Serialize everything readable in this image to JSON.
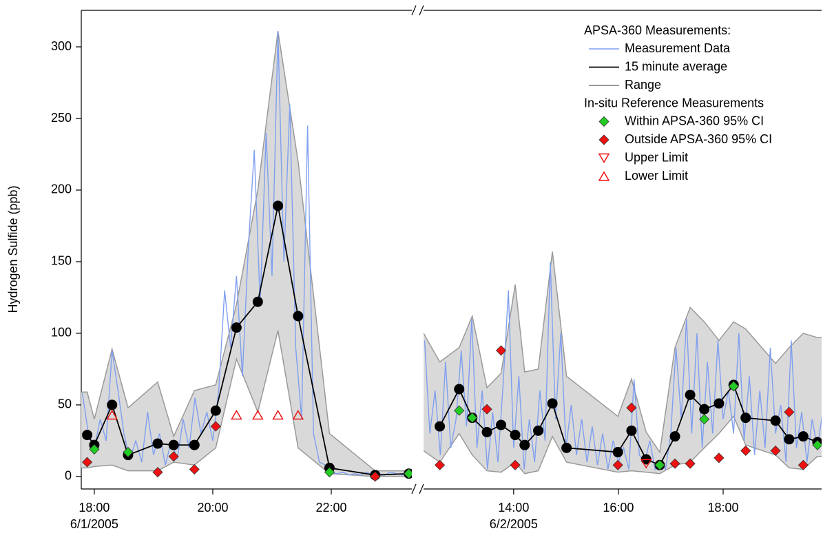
{
  "chart_data": {
    "type": "line",
    "ylabel": "Hydrogen Sulfide (ppb)",
    "ylim": [
      -8.7,
      325.5
    ],
    "yticks": [
      0,
      50,
      100,
      150,
      200,
      250,
      300
    ],
    "legend_titles": [
      "APSA-360 Measurements:",
      "In-situ Reference Measurements"
    ],
    "panels": [
      {
        "xlim": [
          17.78,
          23.36
        ],
        "xticks": [
          {
            "value": 18,
            "label": "18:00"
          },
          {
            "value": 20,
            "label": "20:00"
          },
          {
            "value": 22,
            "label": "22:00"
          }
        ],
        "date_label": "6/1/2005"
      },
      {
        "xlim": [
          12.28,
          19.88
        ],
        "xticks": [
          {
            "value": 14,
            "label": "14:00"
          },
          {
            "value": 16,
            "label": "16:00"
          },
          {
            "value": 18,
            "label": "18:00"
          }
        ],
        "date_label": "6/2/2005"
      }
    ],
    "series": [
      {
        "name": "Measurement Data",
        "kind": "line",
        "color": "#7f9ff0",
        "panels": [
          {
            "x": [
              17.8,
              17.9,
              18.0,
              18.1,
              18.2,
              18.3,
              18.4,
              18.5,
              18.6,
              18.7,
              18.8,
              18.9,
              19.0,
              19.1,
              19.2,
              19.3,
              19.4,
              19.5,
              19.6,
              19.7,
              19.8,
              19.9,
              20.0,
              20.1,
              20.2,
              20.3,
              20.4,
              20.5,
              20.6,
              20.7,
              20.8,
              20.9,
              21.0,
              21.1,
              21.2,
              21.3,
              21.4,
              21.5,
              21.6,
              21.7,
              21.8,
              21.9,
              22.0,
              22.1,
              22.2,
              22.3,
              22.4,
              22.5,
              22.6,
              22.7,
              22.8,
              22.9,
              23.0,
              23.1,
              23.2,
              23.3
            ],
            "values": [
              58,
              30,
              20,
              40,
              25,
              88,
              60,
              30,
              12,
              25,
              10,
              45,
              15,
              30,
              8,
              25,
              12,
              40,
              20,
              55,
              30,
              45,
              25,
              60,
              130,
              90,
              140,
              70,
              160,
              228,
              120,
              240,
              140,
              311,
              150,
              260,
              90,
              40,
              245,
              30,
              10,
              8,
              3,
              2,
              3,
              1,
              2,
              1,
              3,
              1,
              2,
              1,
              3,
              2,
              1,
              2
            ]
          },
          {
            "x": [
              12.3,
              12.4,
              12.5,
              12.6,
              12.7,
              12.8,
              12.9,
              13.0,
              13.1,
              13.2,
              13.3,
              13.4,
              13.5,
              13.6,
              13.7,
              13.8,
              13.9,
              14.0,
              14.1,
              14.2,
              14.3,
              14.4,
              14.5,
              14.6,
              14.7,
              14.8,
              14.9,
              15.0,
              15.1,
              15.2,
              15.3,
              15.4,
              15.5,
              15.6,
              15.7,
              15.8,
              15.9,
              16.0,
              16.1,
              16.2,
              16.3,
              16.4,
              16.5,
              16.6,
              16.7,
              16.8,
              16.9,
              17.0,
              17.1,
              17.2,
              17.3,
              17.4,
              17.5,
              17.6,
              17.7,
              17.8,
              17.9,
              18.0,
              18.1,
              18.2,
              18.3,
              18.4,
              18.5,
              18.6,
              18.7,
              18.8,
              18.9,
              19.0,
              19.1,
              19.2,
              19.3,
              19.4,
              19.5,
              19.6,
              19.7,
              19.8,
              19.9
            ],
            "values": [
              95,
              30,
              60,
              15,
              80,
              20,
              40,
              88,
              35,
              110,
              20,
              60,
              5,
              45,
              10,
              65,
              130,
              20,
              70,
              5,
              40,
              10,
              60,
              25,
              150,
              40,
              100,
              20,
              50,
              15,
              40,
              10,
              35,
              8,
              30,
              5,
              25,
              10,
              20,
              5,
              68,
              15,
              10,
              25,
              5,
              10,
              5,
              30,
              90,
              40,
              110,
              30,
              100,
              20,
              80,
              30,
              95,
              40,
              60,
              30,
              100,
              25,
              70,
              15,
              60,
              20,
              90,
              30,
              50,
              10,
              95,
              20,
              45,
              10,
              40,
              20,
              45
            ]
          }
        ]
      },
      {
        "name": "15 minute average",
        "kind": "line",
        "marker": "circle",
        "color": "#000000",
        "panels": [
          {
            "x": [
              17.88,
              18.0,
              18.3,
              18.57,
              19.07,
              19.34,
              19.69,
              20.05,
              20.4,
              20.76,
              21.1,
              21.44,
              21.97,
              22.74,
              23.31
            ],
            "values": [
              29,
              22,
              50,
              15,
              23,
              22,
              22,
              46,
              104,
              122,
              189,
              112,
              6,
              1,
              2
            ]
          },
          {
            "x": [
              12.59,
              12.96,
              13.21,
              13.49,
              13.76,
              14.03,
              14.21,
              14.47,
              14.74,
              15.01,
              15.99,
              16.25,
              16.53,
              16.79,
              17.08,
              17.37,
              17.64,
              17.92,
              18.2,
              18.43,
              19.0,
              19.26,
              19.53,
              19.8
            ],
            "values": [
              35,
              61,
              41,
              31,
              36,
              29,
              22,
              32,
              51,
              20,
              17,
              32,
              12,
              8,
              28,
              57,
              47,
              51,
              64,
              41,
              39,
              26,
              28,
              24
            ]
          }
        ]
      },
      {
        "name": "Range",
        "kind": "range",
        "color": "#999999",
        "fill": "#d9d9d9",
        "panels": [
          {
            "x": [
              17.78,
              17.88,
              18.0,
              18.3,
              18.57,
              19.07,
              19.34,
              19.69,
              20.05,
              20.4,
              20.76,
              21.1,
              21.44,
              21.97,
              22.74,
              23.31
            ],
            "values": [
              59,
              59,
              40,
              89,
              48,
              66,
              28,
              60,
              64,
              120,
              200,
              311,
              220,
              30,
              4,
              4
            ],
            "lower": [
              6,
              6,
              7,
              8,
              4,
              4,
              10,
              8,
              20,
              82,
              45,
              102,
              20,
              2,
              0,
              0
            ]
          },
          {
            "x": [
              12.28,
              12.59,
              12.96,
              13.21,
              13.49,
              13.76,
              14.03,
              14.21,
              14.47,
              14.74,
              15.01,
              15.99,
              16.25,
              16.53,
              16.79,
              17.08,
              17.37,
              17.64,
              17.92,
              18.2,
              18.43,
              19.0,
              19.26,
              19.53,
              19.8,
              19.88
            ],
            "values": [
              100,
              80,
              90,
              112,
              62,
              72,
              134,
              73,
              75,
              157,
              70,
              42,
              68,
              31,
              17,
              90,
              118,
              108,
              95,
              108,
              103,
              79,
              90,
              100,
              97,
              97
            ],
            "lower": [
              18,
              10,
              30,
              15,
              4,
              3,
              10,
              2,
              4,
              28,
              10,
              3,
              4,
              3,
              2,
              8,
              10,
              20,
              30,
              42,
              22,
              15,
              6,
              5,
              14,
              14
            ]
          }
        ]
      },
      {
        "name": "Within APSA-360 95% CI",
        "kind": "scatter",
        "marker": "diamond",
        "color": "#22cc22",
        "panels": [
          {
            "x": [
              18.0,
              18.57,
              21.97,
              23.31
            ],
            "values": [
              19,
              17,
              3,
              2
            ]
          },
          {
            "x": [
              12.96,
              13.21,
              16.79,
              17.64,
              18.2,
              19.8
            ],
            "values": [
              46,
              41,
              8,
              40,
              63,
              22
            ]
          }
        ]
      },
      {
        "name": "Outside APSA-360 95% CI",
        "kind": "scatter",
        "marker": "diamond",
        "color": "#ee1111",
        "panels": [
          {
            "x": [
              17.88,
              19.07,
              19.34,
              19.69,
              20.05,
              22.74
            ],
            "values": [
              10,
              3,
              14,
              5,
              35,
              0
            ]
          },
          {
            "x": [
              12.59,
              13.49,
              13.76,
              14.03,
              15.99,
              16.25,
              17.08,
              17.37,
              17.92,
              18.43,
              19.0,
              19.26,
              19.53
            ],
            "values": [
              8,
              47,
              88,
              8,
              8,
              48,
              9,
              9,
              13,
              18,
              18,
              45,
              8
            ]
          }
        ]
      },
      {
        "name": "Upper Limit",
        "kind": "scatter",
        "marker": "triangle-down",
        "color": "#ee1111",
        "panels": [
          {
            "x": [],
            "values": []
          },
          {
            "x": [
              16.53
            ],
            "values": [
              9
            ]
          }
        ]
      },
      {
        "name": "Lower Limit",
        "kind": "scatter",
        "marker": "triangle-up",
        "color": "#ee1111",
        "panels": [
          {
            "x": [
              18.3,
              20.4,
              20.76,
              21.1,
              21.44
            ],
            "values": [
              43,
              43,
              43,
              43,
              43
            ]
          },
          {
            "x": [],
            "values": []
          }
        ]
      }
    ]
  }
}
